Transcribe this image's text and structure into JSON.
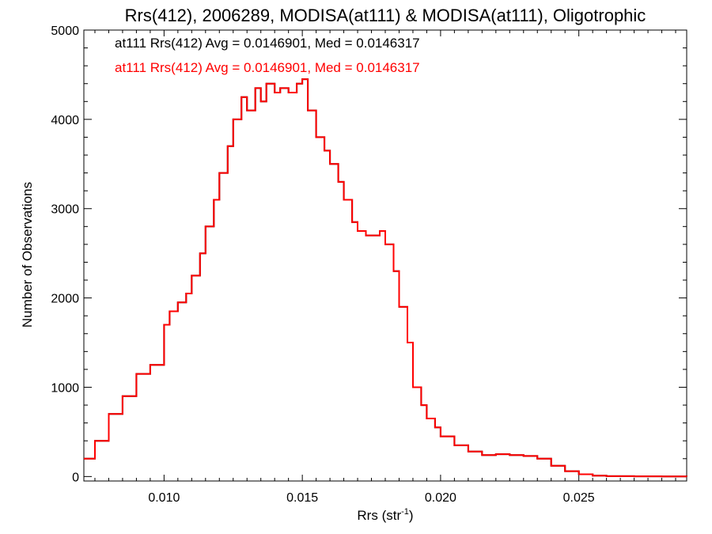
{
  "chart_data": {
    "type": "line",
    "title": "Rrs(412), 2006289, MODISA(at111) & MODISA(at111), Oligotrophic",
    "xlabel": "Rrs (str",
    "xlabel_sup": "-1",
    "xlabel_close": ")",
    "ylabel": "Number of Observations",
    "xlim": [
      0.0071,
      0.0289
    ],
    "ylim": [
      -50,
      5000
    ],
    "x_ticks": [
      0.01,
      0.015,
      0.02,
      0.025
    ],
    "x_tick_labels": [
      "0.010",
      "0.015",
      "0.020",
      "0.025"
    ],
    "y_ticks": [
      0,
      1000,
      2000,
      3000,
      4000,
      5000
    ],
    "y_tick_labels": [
      "0",
      "1000",
      "2000",
      "3000",
      "4000",
      "5000"
    ],
    "grid": false,
    "annotations": [
      {
        "text": "at111 Rrs(412) Avg = 0.0146901, Med = 0.0146317",
        "color": "#000000"
      },
      {
        "text": "at111 Rrs(412) Avg = 0.0146901, Med = 0.0146317",
        "color": "#ff0000"
      }
    ],
    "series": [
      {
        "color": "#000000",
        "x": [
          0.0071,
          0.0075,
          0.008,
          0.0085,
          0.009,
          0.0095,
          0.01,
          0.0102,
          0.0105,
          0.0108,
          0.011,
          0.0113,
          0.0115,
          0.0118,
          0.012,
          0.0123,
          0.0125,
          0.0128,
          0.013,
          0.0133,
          0.0135,
          0.0137,
          0.014,
          0.0142,
          0.0145,
          0.0148,
          0.015,
          0.0152,
          0.0155,
          0.0158,
          0.016,
          0.0163,
          0.0165,
          0.0168,
          0.017,
          0.0173,
          0.0175,
          0.0178,
          0.018,
          0.0183,
          0.0185,
          0.0188,
          0.019,
          0.0193,
          0.0195,
          0.0198,
          0.02,
          0.0205,
          0.021,
          0.0215,
          0.022,
          0.0225,
          0.023,
          0.0235,
          0.024,
          0.0245,
          0.025,
          0.0255,
          0.026,
          0.027,
          0.028,
          0.0289
        ],
        "y": [
          200,
          400,
          700,
          900,
          1150,
          1250,
          1700,
          1850,
          1950,
          2050,
          2250,
          2500,
          2800,
          3100,
          3400,
          3700,
          4000,
          4250,
          4100,
          4350,
          4200,
          4400,
          4300,
          4350,
          4300,
          4400,
          4450,
          4100,
          3800,
          3650,
          3500,
          3300,
          3100,
          2850,
          2750,
          2700,
          2700,
          2750,
          2600,
          2300,
          1900,
          1500,
          1000,
          800,
          650,
          550,
          450,
          350,
          280,
          240,
          250,
          240,
          230,
          200,
          120,
          60,
          25,
          10,
          4,
          2,
          1,
          0
        ]
      },
      {
        "color": "#ff0000",
        "x": [
          0.0071,
          0.0075,
          0.008,
          0.0085,
          0.009,
          0.0095,
          0.01,
          0.0102,
          0.0105,
          0.0108,
          0.011,
          0.0113,
          0.0115,
          0.0118,
          0.012,
          0.0123,
          0.0125,
          0.0128,
          0.013,
          0.0133,
          0.0135,
          0.0137,
          0.014,
          0.0142,
          0.0145,
          0.0148,
          0.015,
          0.0152,
          0.0155,
          0.0158,
          0.016,
          0.0163,
          0.0165,
          0.0168,
          0.017,
          0.0173,
          0.0175,
          0.0178,
          0.018,
          0.0183,
          0.0185,
          0.0188,
          0.019,
          0.0193,
          0.0195,
          0.0198,
          0.02,
          0.0205,
          0.021,
          0.0215,
          0.022,
          0.0225,
          0.023,
          0.0235,
          0.024,
          0.0245,
          0.025,
          0.0255,
          0.026,
          0.027,
          0.028,
          0.0289
        ],
        "y": [
          200,
          400,
          700,
          900,
          1150,
          1250,
          1700,
          1850,
          1950,
          2050,
          2250,
          2500,
          2800,
          3100,
          3400,
          3700,
          4000,
          4250,
          4100,
          4350,
          4200,
          4400,
          4300,
          4350,
          4300,
          4400,
          4450,
          4100,
          3800,
          3650,
          3500,
          3300,
          3100,
          2850,
          2750,
          2700,
          2700,
          2750,
          2600,
          2300,
          1900,
          1500,
          1000,
          800,
          650,
          550,
          450,
          350,
          280,
          240,
          250,
          240,
          230,
          200,
          120,
          60,
          25,
          10,
          4,
          2,
          1,
          0
        ]
      }
    ]
  }
}
